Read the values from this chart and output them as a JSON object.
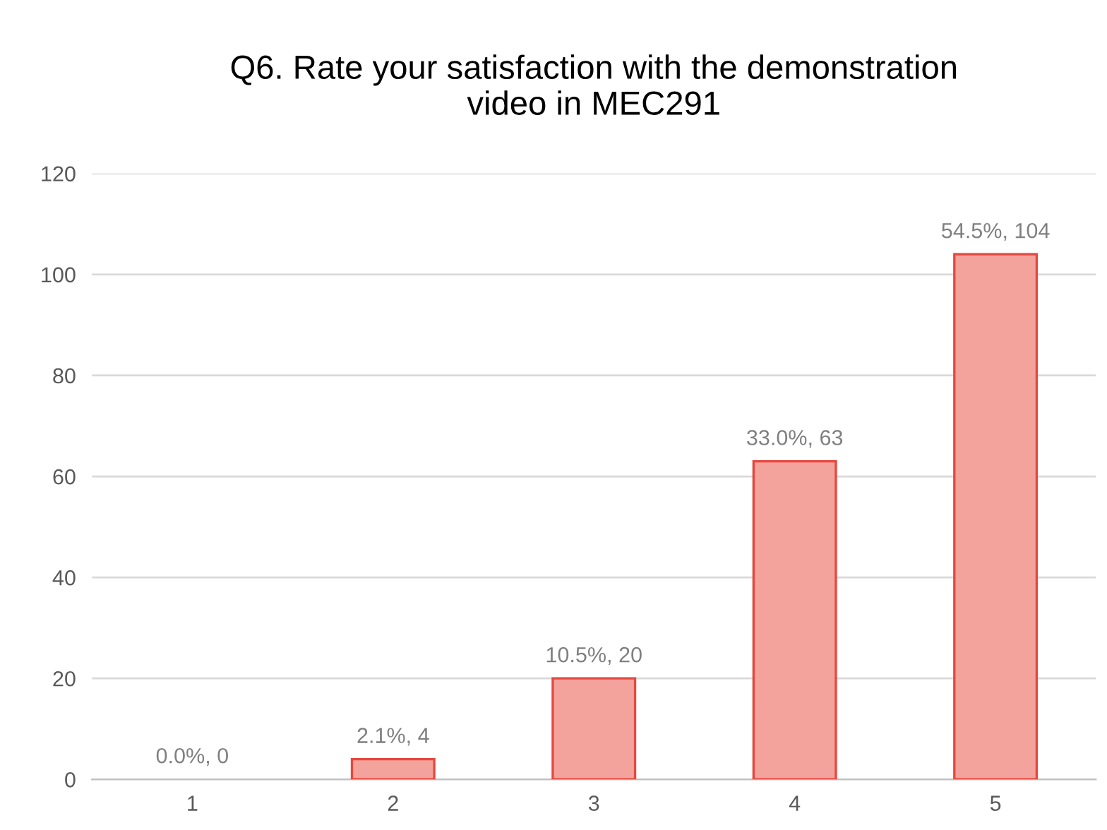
{
  "chart_data": {
    "type": "bar",
    "title": "Q6. Rate your satisfaction with the demonstration\nvideo in MEC291",
    "categories": [
      "1",
      "2",
      "3",
      "4",
      "5"
    ],
    "values": [
      0,
      4,
      20,
      63,
      104
    ],
    "value_labels": [
      "0.0%, 0",
      "2.1%, 4",
      "10.5%, 20",
      "33.0%, 63",
      "54.5%, 104"
    ],
    "color": "#f4a29c",
    "ylim": [
      0,
      120
    ],
    "yticks": [
      0,
      20,
      40,
      60,
      80,
      100,
      120
    ],
    "grid": "y"
  }
}
